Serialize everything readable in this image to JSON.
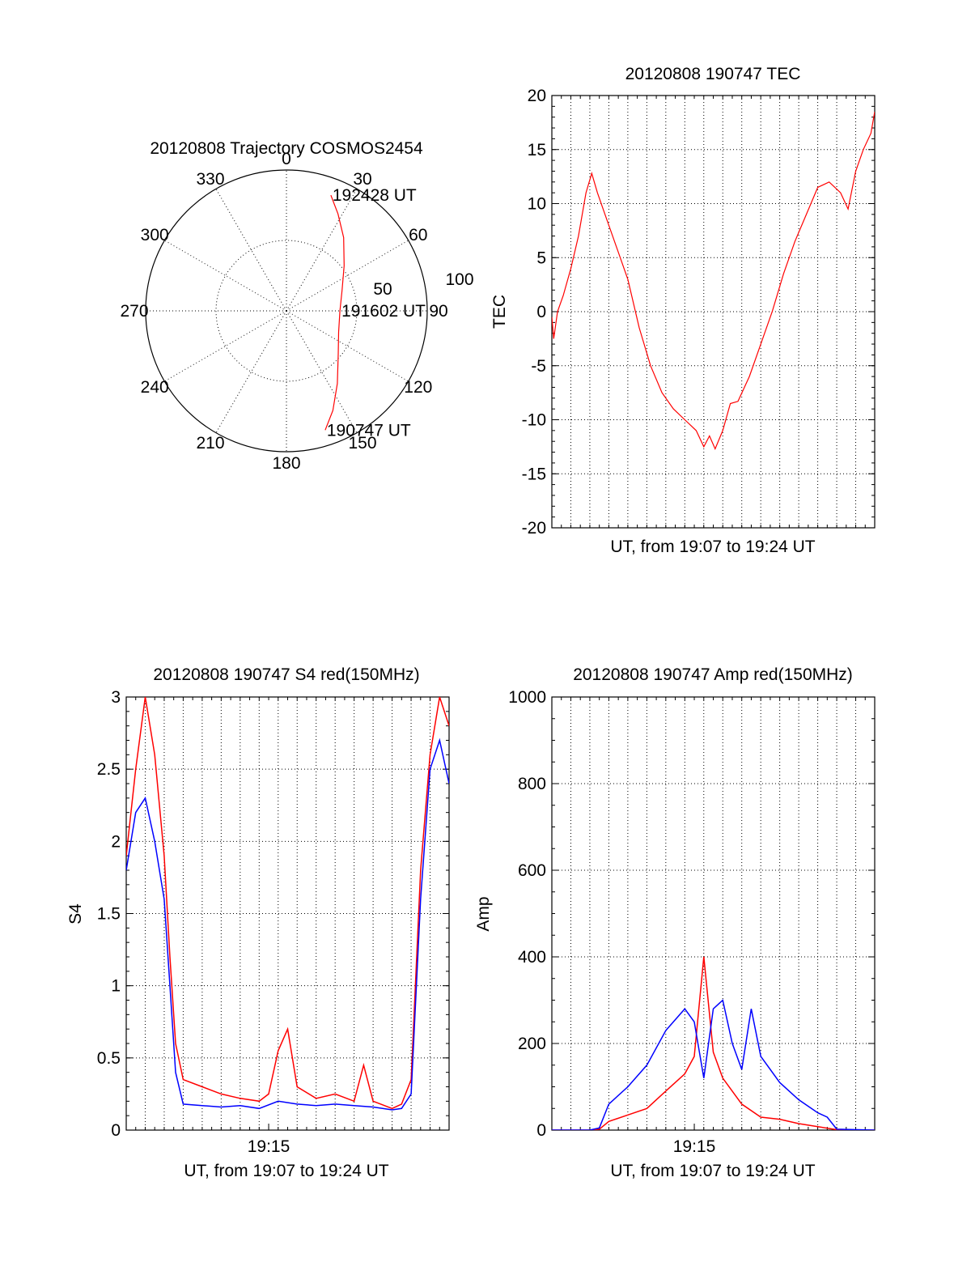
{
  "colors": {
    "red": "#ff0000",
    "blue": "#0000ff",
    "axis": "#000000"
  },
  "chart_data": [
    {
      "id": "polar",
      "type": "polar-line",
      "title": "20120808 Trajectory COSMOS2454",
      "angle_labels": [
        "0",
        "30",
        "60",
        "90",
        "120",
        "150",
        "180",
        "210",
        "240",
        "270",
        "300",
        "330"
      ],
      "radius_labels": [
        "50",
        "100"
      ],
      "rmax": 100,
      "grid": true,
      "series": [
        {
          "color": "red",
          "points": [
            [
              162,
              89
            ],
            [
              155,
              78
            ],
            [
              145,
              63
            ],
            [
              130,
              48
            ],
            [
              112,
              40
            ],
            [
              90,
              38
            ],
            [
              70,
              42
            ],
            [
              52,
              52
            ],
            [
              38,
              66
            ],
            [
              28,
              78
            ],
            [
              21,
              88
            ]
          ]
        }
      ],
      "annotations": [
        {
          "text": "192428 UT",
          "at": [
            21,
            88
          ]
        },
        {
          "text": "191602 UT",
          "at": [
            90,
            38
          ]
        },
        {
          "text": "190747 UT",
          "at": [
            162,
            89
          ]
        }
      ]
    },
    {
      "id": "tec",
      "type": "line",
      "title": "20120808 190747 TEC",
      "xlabel": "UT, from 19:07 to 19:24 UT",
      "ylabel": "TEC",
      "xlim": [
        0,
        17
      ],
      "ylim": [
        -20,
        20
      ],
      "yticks": [
        "-20",
        "-15",
        "-10",
        "-5",
        "0",
        "5",
        "10",
        "15",
        "20"
      ],
      "grid": true,
      "series": [
        {
          "color": "red",
          "x": [
            0,
            0.1,
            0.3,
            0.6,
            1.0,
            1.4,
            1.8,
            2.1,
            2.4,
            2.8,
            3.4,
            4.0,
            4.6,
            5.2,
            5.8,
            6.4,
            7.0,
            7.6,
            8.0,
            8.3,
            8.6,
            9.0,
            9.4,
            9.8,
            10.4,
            11.0,
            11.6,
            12.2,
            12.8,
            13.4,
            14.0,
            14.6,
            15.2,
            15.6,
            16.0,
            16.4,
            16.8,
            17.0
          ],
          "y": [
            -0.5,
            -2.5,
            0,
            1.5,
            4,
            7,
            11,
            12.8,
            11,
            9,
            6,
            3,
            -1.5,
            -5,
            -7.5,
            -9,
            -10,
            -11,
            -12.5,
            -11.5,
            -12.7,
            -11,
            -8.5,
            -8.3,
            -6,
            -3,
            0,
            3.5,
            6.5,
            9,
            11.5,
            12,
            11,
            9.5,
            13,
            15,
            16.5,
            18.5
          ]
        }
      ]
    },
    {
      "id": "s4",
      "type": "line",
      "title": "20120808 190747 S4 red(150MHz)",
      "xlabel": "UT, from 19:07 to 19:24 UT",
      "ylabel": "S4",
      "xlim": [
        0,
        17
      ],
      "ylim": [
        0,
        3
      ],
      "xticks": [
        {
          "x": 7.5,
          "label": "19:15"
        }
      ],
      "yticks": [
        "0",
        "0.5",
        "1",
        "1.5",
        "2",
        "2.5",
        "3"
      ],
      "grid": true,
      "series": [
        {
          "color": "red",
          "x": [
            0,
            0.5,
            1.0,
            1.5,
            2.0,
            2.3,
            2.6,
            3.0,
            4.0,
            5.0,
            6.0,
            7.0,
            7.5,
            8.0,
            8.5,
            9.0,
            10.0,
            11.0,
            12.0,
            12.5,
            13.0,
            14.0,
            14.5,
            15.0,
            15.5,
            16.0,
            16.5,
            17.0
          ],
          "y": [
            1.9,
            2.5,
            3.0,
            2.6,
            1.9,
            1.2,
            0.6,
            0.35,
            0.3,
            0.25,
            0.22,
            0.2,
            0.25,
            0.55,
            0.7,
            0.3,
            0.22,
            0.25,
            0.2,
            0.45,
            0.2,
            0.15,
            0.18,
            0.35,
            1.8,
            2.6,
            3.0,
            2.8
          ]
        },
        {
          "color": "blue",
          "x": [
            0,
            0.5,
            1.0,
            1.5,
            2.0,
            2.3,
            2.6,
            3.0,
            4.0,
            5.0,
            6.0,
            7.0,
            8.0,
            9.0,
            10.0,
            11.0,
            12.0,
            13.0,
            14.0,
            14.5,
            15.0,
            15.5,
            16.0,
            16.5,
            17.0
          ],
          "y": [
            1.8,
            2.2,
            2.3,
            2.0,
            1.6,
            1.0,
            0.4,
            0.18,
            0.17,
            0.16,
            0.17,
            0.15,
            0.2,
            0.18,
            0.17,
            0.18,
            0.17,
            0.16,
            0.14,
            0.15,
            0.25,
            1.6,
            2.5,
            2.7,
            2.4
          ]
        }
      ]
    },
    {
      "id": "amp",
      "type": "line",
      "title": "20120808 190747 Amp red(150MHz)",
      "xlabel": "UT, from 19:07 to 19:24 UT",
      "ylabel": "Amp",
      "xlim": [
        0,
        17
      ],
      "ylim": [
        0,
        1000
      ],
      "xticks": [
        {
          "x": 7.5,
          "label": "19:15"
        }
      ],
      "yticks": [
        "0",
        "200",
        "400",
        "600",
        "800",
        "1000"
      ],
      "grid": true,
      "series": [
        {
          "color": "red",
          "x": [
            0,
            2.0,
            2.5,
            3.0,
            4.0,
            5.0,
            6.0,
            7.0,
            7.5,
            8.0,
            8.5,
            9.0,
            10.0,
            11.0,
            12.0,
            13.0,
            14.0,
            15.0,
            17.0
          ],
          "y": [
            0,
            0,
            2,
            20,
            35,
            50,
            90,
            130,
            170,
            400,
            180,
            120,
            60,
            30,
            25,
            15,
            8,
            1,
            0
          ]
        },
        {
          "color": "blue",
          "x": [
            0,
            2.0,
            2.5,
            3.0,
            4.0,
            5.0,
            6.0,
            7.0,
            7.5,
            8.0,
            8.5,
            9.0,
            9.5,
            10.0,
            10.5,
            11.0,
            12.0,
            13.0,
            14.0,
            14.5,
            15.0,
            17.0
          ],
          "y": [
            0,
            0,
            5,
            60,
            100,
            150,
            230,
            280,
            250,
            120,
            280,
            300,
            200,
            140,
            280,
            170,
            110,
            70,
            40,
            30,
            2,
            0
          ]
        }
      ]
    }
  ]
}
